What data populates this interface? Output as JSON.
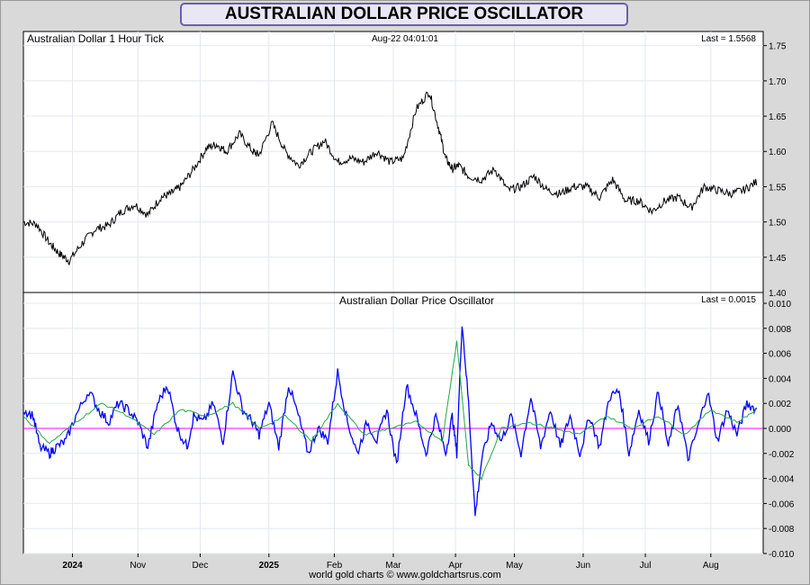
{
  "title": "AUSTRALIAN DOLLAR PRICE OSCILLATOR",
  "footer": "world gold charts © www.goldchartsrus.com",
  "chart_data": [
    {
      "type": "line",
      "label": "Australian Dollar 1 Hour Tick",
      "timestamp": "Aug-22  04:01:01",
      "last_label": "Last = 1.5568",
      "ylim": [
        1.4,
        1.77
      ],
      "yticks": [
        1.45,
        1.5,
        1.55,
        1.6,
        1.65,
        1.7,
        1.75
      ],
      "ytick_labels": [
        "1.45",
        "1.50",
        "1.55",
        "1.60",
        "1.65",
        "1.70",
        "1.75"
      ],
      "xlim": [
        0,
        11.3
      ],
      "grid": true,
      "line_color": "#000000",
      "series": [
        {
          "x": [
            0,
            0.2,
            0.4,
            0.55,
            0.7,
            0.9,
            1.1,
            1.3,
            1.5,
            1.7,
            1.9,
            2.1,
            2.25,
            2.4,
            2.6,
            2.8,
            2.95,
            3.1,
            3.3,
            3.5,
            3.6,
            3.8,
            4.0,
            4.2,
            4.4,
            4.6,
            4.8,
            5.0,
            5.2,
            5.4,
            5.6,
            5.8,
            6.0,
            6.2,
            6.35,
            6.45,
            6.55,
            6.65,
            6.8,
            7.0,
            7.2,
            7.4,
            7.6,
            7.8,
            8.0,
            8.2,
            8.4,
            8.6,
            8.8,
            9.0,
            9.2,
            9.4,
            9.6,
            9.8,
            10.0,
            10.2,
            10.4,
            10.6,
            10.8,
            11.0,
            11.2
          ],
          "y": [
            1.5,
            1.497,
            1.47,
            1.455,
            1.445,
            1.47,
            1.49,
            1.495,
            1.515,
            1.525,
            1.51,
            1.535,
            1.54,
            1.55,
            1.575,
            1.605,
            1.61,
            1.6,
            1.625,
            1.6,
            1.595,
            1.64,
            1.6,
            1.58,
            1.6,
            1.615,
            1.585,
            1.59,
            1.585,
            1.6,
            1.585,
            1.59,
            1.66,
            1.685,
            1.63,
            1.59,
            1.575,
            1.58,
            1.565,
            1.56,
            1.575,
            1.545,
            1.55,
            1.565,
            1.545,
            1.54,
            1.55,
            1.55,
            1.535,
            1.56,
            1.53,
            1.53,
            1.515,
            1.53,
            1.535,
            1.52,
            1.55,
            1.545,
            1.54,
            1.545,
            1.557
          ]
        }
      ]
    },
    {
      "type": "line",
      "label": "Australian Dollar Price Oscillator",
      "last_label": "Last = 0.0015",
      "ylim": [
        -0.01,
        0.01
      ],
      "yticks": [
        -0.01,
        -0.008,
        -0.006,
        -0.004,
        -0.002,
        0.0,
        0.002,
        0.004,
        0.006,
        0.008,
        0.01
      ],
      "ytick_labels": [
        "-0.010",
        "-0.008",
        "-0.006",
        "-0.004",
        "-0.002",
        "0.000",
        "0.002",
        "0.004",
        "0.006",
        "0.008",
        "0.010"
      ],
      "zero_line_color": "#ff00ff",
      "grid": true,
      "x_categories": [
        "2024",
        "Nov",
        "Dec",
        "2025",
        "Feb",
        "Mar",
        "Apr",
        "May",
        "Jun",
        "Jul",
        "Aug"
      ],
      "x_category_positions": [
        0.75,
        1.75,
        2.7,
        3.75,
        4.75,
        5.65,
        6.6,
        7.5,
        8.55,
        9.5,
        10.5
      ],
      "x_bold": [
        "2024",
        "2025"
      ],
      "series": [
        {
          "color": "#0000ff",
          "x": [
            0,
            0.15,
            0.25,
            0.4,
            0.5,
            0.65,
            0.8,
            1.0,
            1.15,
            1.3,
            1.45,
            1.6,
            1.75,
            1.9,
            2.05,
            2.2,
            2.35,
            2.5,
            2.6,
            2.75,
            2.9,
            3.05,
            3.2,
            3.35,
            3.5,
            3.6,
            3.75,
            3.9,
            4.05,
            4.2,
            4.35,
            4.5,
            4.65,
            4.8,
            4.95,
            5.1,
            5.25,
            5.4,
            5.55,
            5.7,
            5.85,
            6.0,
            6.15,
            6.3,
            6.45,
            6.55,
            6.62,
            6.7,
            6.8,
            6.9,
            7.0,
            7.15,
            7.3,
            7.45,
            7.6,
            7.75,
            7.9,
            8.05,
            8.2,
            8.35,
            8.5,
            8.65,
            8.8,
            8.95,
            9.1,
            9.25,
            9.4,
            9.55,
            9.7,
            9.85,
            10.0,
            10.15,
            10.3,
            10.45,
            10.6,
            10.75,
            10.9,
            11.05,
            11.2
          ],
          "y": [
            0.0015,
            0.001,
            -0.0015,
            -0.002,
            -0.0015,
            -0.001,
            0.001,
            0.003,
            0.0015,
            0.0005,
            0.002,
            0.0015,
            0.0005,
            -0.0015,
            0.002,
            0.0035,
            0.0,
            -0.0015,
            0.001,
            0.0005,
            0.002,
            -0.001,
            0.0045,
            0.0015,
            0.0005,
            -0.0005,
            0.002,
            -0.0015,
            0.0035,
            0.001,
            -0.002,
            0.0,
            -0.001,
            0.0045,
            0.0005,
            -0.002,
            0.0005,
            -0.001,
            0.0015,
            -0.003,
            0.0035,
            0.001,
            -0.002,
            0.001,
            -0.002,
            0.001,
            -0.002,
            0.0085,
            0.002,
            -0.007,
            -0.0025,
            0.0005,
            -0.001,
            0.001,
            -0.002,
            0.0025,
            -0.0015,
            0.0015,
            -0.0015,
            0.001,
            -0.002,
            0.001,
            -0.0015,
            0.0025,
            0.003,
            -0.002,
            0.0015,
            -0.001,
            0.003,
            -0.0015,
            0.002,
            -0.0025,
            0.0,
            0.003,
            -0.001,
            0.0015,
            -0.0005,
            0.002,
            0.0015
          ]
        },
        {
          "color": "#22aa44",
          "x": [
            0,
            0.4,
            0.8,
            1.2,
            1.6,
            2.0,
            2.4,
            2.8,
            3.2,
            3.6,
            4.0,
            4.4,
            4.8,
            5.2,
            5.6,
            6.0,
            6.4,
            6.62,
            6.8,
            7.0,
            7.3,
            7.7,
            8.1,
            8.5,
            8.9,
            9.3,
            9.7,
            10.1,
            10.5,
            10.9,
            11.2
          ],
          "y": [
            0.001,
            -0.0012,
            0.0005,
            0.002,
            0.001,
            -0.0005,
            0.0015,
            0.001,
            0.002,
            0.0,
            0.001,
            -0.001,
            0.002,
            -0.0005,
            0.0,
            0.0005,
            -0.001,
            0.007,
            -0.003,
            -0.004,
            0.0,
            0.0005,
            0.0,
            -0.0005,
            0.001,
            0.0,
            0.001,
            -0.0005,
            0.0015,
            0.0005,
            0.0015
          ]
        }
      ]
    }
  ]
}
